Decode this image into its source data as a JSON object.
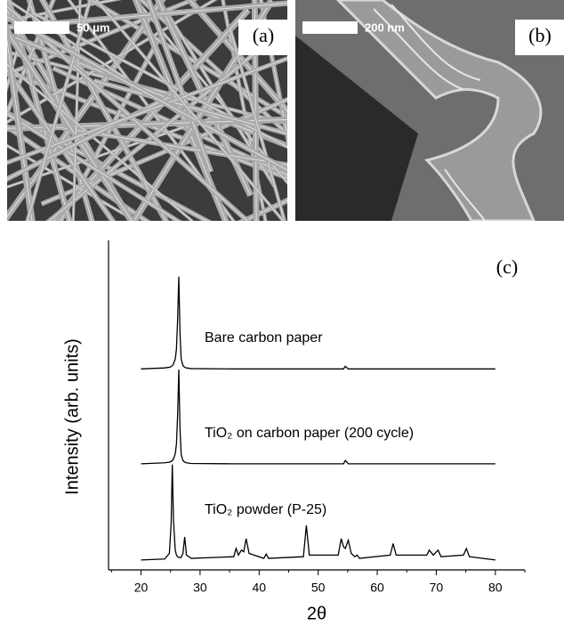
{
  "panels": [
    {
      "label": "(a)",
      "scale_bar": "50 μm"
    },
    {
      "label": "(b)",
      "scale_bar": "200 nm"
    }
  ],
  "chart_data": {
    "type": "line",
    "panel_label": "(c)",
    "x_label": "2θ",
    "y_label": "Intensity (arb. units)",
    "xlim": [
      14.5,
      85
    ],
    "ylim": [
      0,
      100
    ],
    "xticks": [
      20,
      30,
      40,
      50,
      60,
      70,
      80
    ],
    "xminorticks": [
      15,
      25,
      35,
      45,
      55,
      65,
      75,
      85
    ],
    "x": [
      20,
      24,
      24.8,
      25.1,
      25.3,
      25.5,
      25.8,
      26.0,
      26.2,
      26.4,
      26.6,
      26.8,
      27.1,
      27.4,
      27.7,
      28.5,
      35.7,
      36.1,
      36.5,
      37.0,
      37.4,
      37.8,
      38.3,
      40.8,
      41.2,
      41.6,
      47.5,
      48.0,
      48.5,
      53.4,
      53.9,
      54.3,
      54.6,
      55.1,
      55.6,
      56.2,
      56.6,
      57.0,
      62.2,
      62.7,
      63.2,
      68.4,
      68.8,
      69.5,
      70.3,
      70.8,
      74.6,
      75.1,
      75.6,
      80
    ],
    "series": [
      {
        "name": "Bare carbon paper",
        "color": "#000000",
        "values": [
          61,
          61.3,
          61.5,
          61.7,
          62,
          62.5,
          64,
          67,
          76,
          89,
          72,
          64,
          62,
          61.5,
          61.3,
          61.1,
          61,
          61,
          61,
          61,
          61,
          61,
          61,
          61,
          61,
          61,
          61,
          61,
          61,
          61,
          61,
          61,
          61.8,
          61,
          61,
          61,
          61,
          61,
          61,
          61,
          61,
          61,
          61,
          61,
          61,
          61,
          61,
          61,
          61,
          61
        ]
      },
      {
        "name": "TiO₂ on carbon paper (200 cycle)",
        "color": "#000000",
        "values": [
          32.2,
          32.5,
          32.7,
          32.9,
          33.2,
          33.7,
          35.2,
          38.2,
          47,
          60.8,
          43,
          35,
          33.2,
          32.7,
          32.5,
          32.3,
          32.2,
          32.2,
          32.2,
          32.2,
          32.2,
          32.2,
          32.2,
          32.2,
          32.2,
          32.2,
          32.2,
          32.2,
          32.2,
          32.2,
          32.2,
          32.2,
          33.2,
          32.2,
          32.2,
          32.2,
          32.2,
          32.2,
          32.2,
          32.2,
          32.2,
          32.2,
          32.2,
          32.2,
          32.2,
          32.2,
          32.2,
          32.2,
          32.2,
          32.2
        ]
      },
      {
        "name": "TiO₂ powder (P-25)",
        "color": "#000000",
        "values": [
          3,
          3.3,
          5,
          14,
          32,
          15,
          6,
          4.5,
          4,
          3.8,
          3.7,
          3.8,
          5,
          10,
          4.5,
          3.5,
          4,
          6.5,
          4.5,
          6,
          5.5,
          9.5,
          5,
          3.5,
          4.8,
          3.5,
          4,
          13.5,
          4.5,
          4.5,
          9.5,
          7,
          6.5,
          9,
          5,
          4,
          4.5,
          3.5,
          4.5,
          8,
          4.5,
          4.5,
          6,
          4.5,
          6,
          4,
          4.5,
          6.5,
          4,
          3
        ]
      }
    ]
  }
}
